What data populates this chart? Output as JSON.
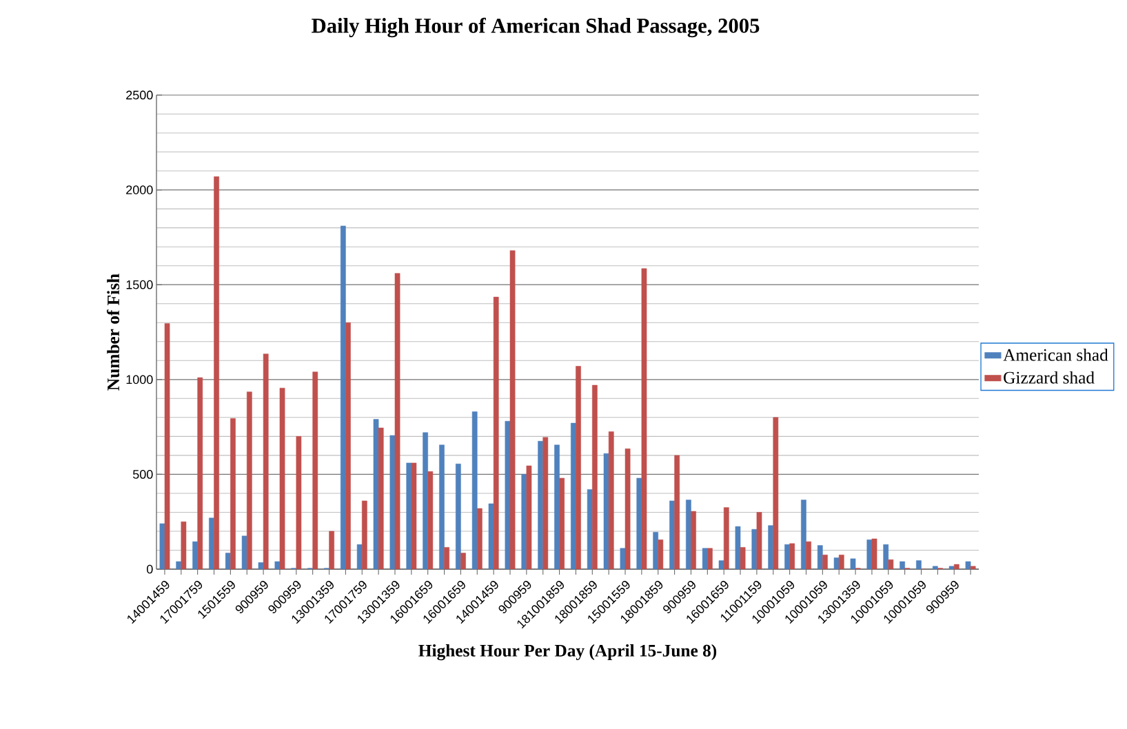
{
  "chart_data": {
    "type": "bar",
    "title": "Daily High Hour of American Shad Passage, 2005",
    "xlabel": "Highest Hour Per Day (April 15-June 8)",
    "ylabel": "Number of Fish",
    "categories": [
      "14001459",
      null,
      "17001759",
      null,
      "1501559",
      null,
      "900959",
      null,
      "900959",
      null,
      "13001359",
      null,
      "17001759",
      null,
      "13001359",
      null,
      "16001659",
      null,
      "16001659",
      null,
      "14001459",
      null,
      "900959",
      null,
      "181001859",
      null,
      "18001859",
      null,
      "15001559",
      null,
      "18001859",
      null,
      "900959",
      null,
      "16001659",
      null,
      "11001159",
      null,
      "10001059",
      null,
      "10001059",
      null,
      "13001359",
      null,
      "10001059",
      null,
      "10001059",
      null,
      "900959",
      null
    ],
    "series": [
      {
        "name": "American shad",
        "color": "#4f81bd",
        "values": [
          240,
          40,
          145,
          270,
          85,
          175,
          35,
          40,
          5,
          5,
          5,
          1810,
          130,
          790,
          705,
          560,
          720,
          655,
          555,
          830,
          345,
          780,
          500,
          675,
          655,
          770,
          420,
          610,
          110,
          480,
          195,
          360,
          365,
          110,
          45,
          225,
          210,
          230,
          130,
          365,
          125,
          60,
          55,
          155,
          130,
          40,
          45,
          15,
          15,
          40
        ]
      },
      {
        "name": "Gizzard shad",
        "color": "#c0504d",
        "values": [
          1295,
          250,
          1010,
          2070,
          795,
          935,
          1135,
          955,
          700,
          1040,
          200,
          1300,
          360,
          745,
          1560,
          560,
          515,
          115,
          85,
          320,
          1435,
          1680,
          545,
          695,
          480,
          1070,
          970,
          725,
          635,
          1585,
          155,
          600,
          305,
          110,
          325,
          115,
          300,
          800,
          135,
          145,
          75,
          75,
          5,
          160,
          50,
          5,
          0,
          5,
          25,
          15
        ]
      }
    ],
    "ylim": [
      0,
      2500
    ],
    "yticks": [
      0,
      500,
      1000,
      1500,
      2000,
      2500
    ],
    "grid": "y",
    "legend": "right"
  }
}
